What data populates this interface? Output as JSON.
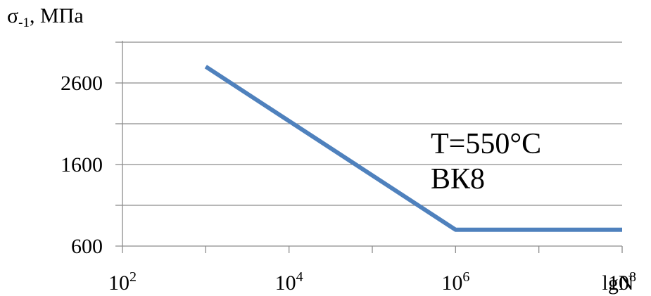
{
  "chart_data": {
    "type": "line",
    "ylabel": {
      "symbol": "σ",
      "subscript": "-1",
      "unit": ", МПа"
    },
    "xlabel": "lgN",
    "x_axis": {
      "scale": "log",
      "range": [
        100,
        100000000
      ],
      "ticks": [
        {
          "value": 100,
          "base": "10",
          "exp": "2"
        },
        {
          "value": 10000,
          "base": "10",
          "exp": "4"
        },
        {
          "value": 1000000,
          "base": "10",
          "exp": "6"
        },
        {
          "value": 100000000,
          "base": "10",
          "exp": "8"
        }
      ]
    },
    "y_axis": {
      "range": [
        600,
        3100
      ],
      "labeled_ticks": [
        600,
        1600,
        2600
      ],
      "gridlines": [
        1100,
        1600,
        2100,
        2600,
        3100
      ]
    },
    "grid": true,
    "series": [
      {
        "color": "#4f81bd",
        "x": [
          1000,
          1000000,
          100000000
        ],
        "y": [
          2800,
          800,
          800
        ]
      }
    ],
    "annotations": [
      "T=550°C",
      "ВК8"
    ]
  }
}
